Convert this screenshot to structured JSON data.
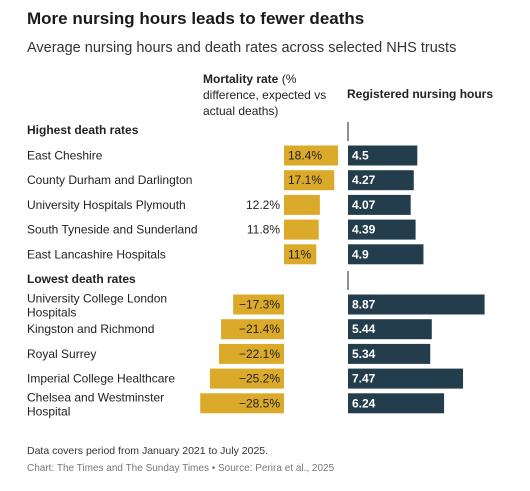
{
  "title": "More nursing hours leads to fewer deaths",
  "subtitle": "Average nursing hours and death rates across selected NHS trusts",
  "columns": {
    "mortality_bold": "Mortality rate",
    "mortality_rest": " (% difference, expected vs actual deaths)",
    "hours": "Registered nursing hours"
  },
  "footnote": "Data covers period from January 2021 to July 2025.",
  "source": "Chart: The Times and The Sunday Times • Source: Perira et al., 2025",
  "colors": {
    "mortality": "#dcaa2a",
    "hours": "#243d4c"
  },
  "chart_data": {
    "type": "bar",
    "groups": [
      {
        "name": "Highest death rates",
        "rows": [
          {
            "trust": "East Cheshire",
            "mortality": 18.4,
            "mortality_label": "18.4%",
            "hours": 4.5,
            "hours_label": "4.5"
          },
          {
            "trust": "County Durham and Darlington",
            "mortality": 17.1,
            "mortality_label": "17.1%",
            "hours": 4.27,
            "hours_label": "4.27"
          },
          {
            "trust": "University Hospitals Plymouth",
            "mortality": 12.2,
            "mortality_label": "12.2%",
            "hours": 4.07,
            "hours_label": "4.07"
          },
          {
            "trust": "South Tyneside and Sunderland",
            "mortality": 11.8,
            "mortality_label": "11.8%",
            "hours": 4.39,
            "hours_label": "4.39"
          },
          {
            "trust": "East Lancashire Hospitals",
            "mortality": 11,
            "mortality_label": "11%",
            "hours": 4.9,
            "hours_label": "4.9"
          }
        ]
      },
      {
        "name": "Lowest death rates",
        "rows": [
          {
            "trust": "University College London Hospitals",
            "trust_lines": [
              "University College London",
              "Hospitals"
            ],
            "mortality": -17.3,
            "mortality_label": "−17.3%",
            "hours": 8.87,
            "hours_label": "8.87"
          },
          {
            "trust": "Kingston and Richmond",
            "mortality": -21.4,
            "mortality_label": "−21.4%",
            "hours": 5.44,
            "hours_label": "5.44"
          },
          {
            "trust": "Royal Surrey",
            "mortality": -22.1,
            "mortality_label": "−22.1%",
            "hours": 5.34,
            "hours_label": "5.34"
          },
          {
            "trust": "Imperial College Healthcare",
            "mortality": -25.2,
            "mortality_label": "−25.2%",
            "hours": 7.47,
            "hours_label": "7.47"
          },
          {
            "trust": "Chelsea and Westminster Hospital",
            "trust_lines": [
              "Chelsea and Westminster",
              "Hospital"
            ],
            "mortality": -28.5,
            "mortality_label": "−28.5%",
            "hours": 6.24,
            "hours_label": "6.24"
          }
        ]
      }
    ]
  }
}
